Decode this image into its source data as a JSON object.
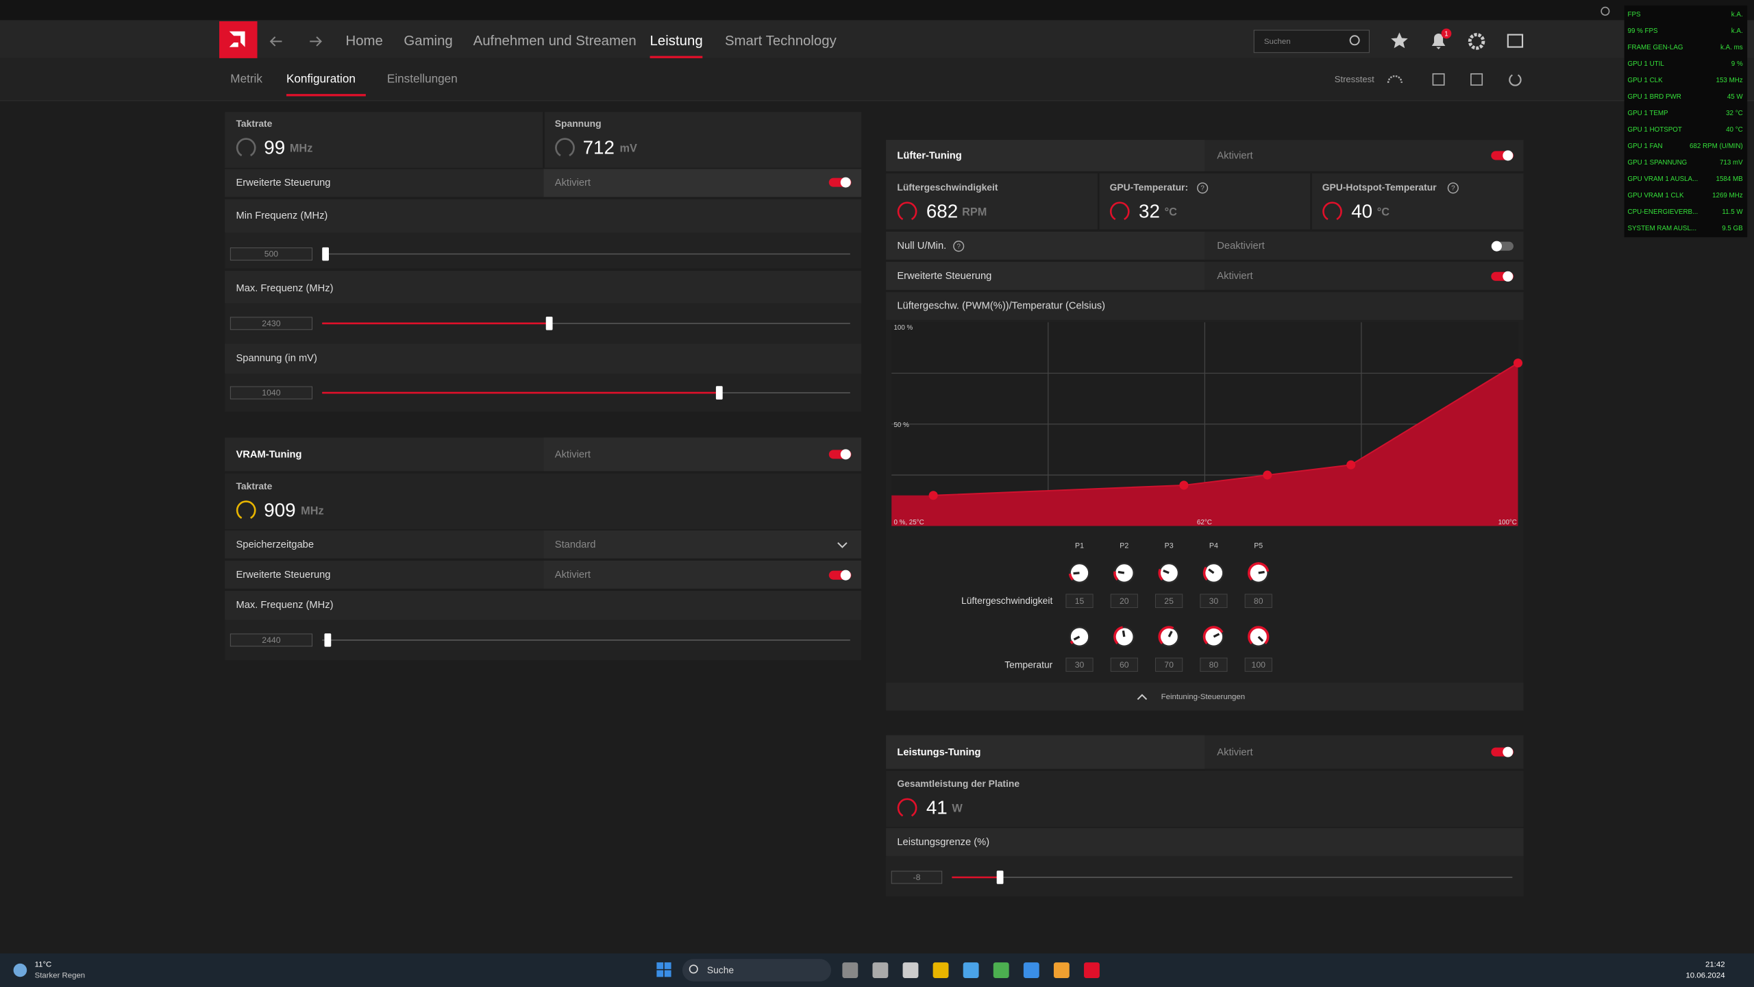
{
  "nav": {
    "items": [
      "Home",
      "Gaming",
      "Aufnehmen und Streamen",
      "Leistung",
      "Smart Technology"
    ],
    "search_placeholder": "Suchen",
    "notification_count": "1"
  },
  "subnav": {
    "items": [
      "Metrik",
      "Konfiguration",
      "Einstellungen"
    ],
    "stresstest": "Stresstest"
  },
  "gpu": {
    "clock_label": "Taktrate",
    "clock_value": 99,
    "clock_unit": "MHz",
    "voltage_label": "Spannung",
    "voltage_value": 712,
    "voltage_unit": "mV",
    "advanced_label": "Erweiterte Steuerung",
    "advanced_state": "Aktiviert",
    "min_freq_label": "Min Frequenz (MHz)",
    "min_freq_value": 500,
    "max_freq_label": "Max. Frequenz (MHz)",
    "max_freq_value": 2430,
    "voltage_mv_label": "Spannung (in mV)",
    "voltage_mv_value": 1040
  },
  "vram": {
    "title": "VRAM-Tuning",
    "state": "Aktiviert",
    "clock_label": "Taktrate",
    "clock_value": 909,
    "clock_unit": "MHz",
    "timing_label": "Speicherzeitgabe",
    "timing_value": "Standard",
    "advanced_label": "Erweiterte Steuerung",
    "advanced_state": "Aktiviert",
    "max_freq_label": "Max. Frequenz (MHz)",
    "max_freq_value": 2440
  },
  "fan": {
    "title": "Lüfter-Tuning",
    "state": "Aktiviert",
    "speed_label": "Lüftergeschwindigkeit",
    "speed_value": 682,
    "speed_unit": "RPM",
    "temp_label": "GPU-Temperatur:",
    "temp_value": 32,
    "temp_unit": "°C",
    "hotspot_label": "GPU-Hotspot-Temperatur",
    "hotspot_value": 40,
    "hotspot_unit": "°C",
    "zero_rpm_label": "Null U/Min.",
    "zero_rpm_state": "Deaktiviert",
    "advanced_label": "Erweiterte Steuerung",
    "advanced_state": "Aktiviert",
    "curve_title": "Lüftergeschw. (PWM(%))/Temperatur (Celsius)",
    "curve": {
      "type": "line",
      "points": [
        "P1",
        "P2",
        "P3",
        "P4",
        "P5"
      ],
      "speed": [
        15,
        20,
        25,
        30,
        80
      ],
      "temperature": [
        30,
        60,
        70,
        80,
        100
      ],
      "xlim": [
        25,
        100
      ],
      "ylim": [
        0,
        100
      ],
      "y_labels": [
        "100 %",
        "50 %"
      ],
      "x_labels": [
        "0 %, 25°C",
        "62°C",
        "100°C"
      ],
      "speed_label": "Lüftergeschwindigkeit",
      "temperature_label": "Temperatur"
    },
    "fine_tuning": "Feintuning-Steuerungen"
  },
  "power": {
    "title": "Leistungs-Tuning",
    "state": "Aktiviert",
    "board_power_label": "Gesamtleistung der Platine",
    "board_power_value": 41,
    "board_power_unit": "W",
    "limit_label": "Leistungsgrenze (%)",
    "limit_value": -8
  },
  "overlay": [
    {
      "label": "FPS",
      "value": "k.A."
    },
    {
      "label": "99 % FPS",
      "value": "k.A."
    },
    {
      "label": "FRAME GEN-LAG",
      "value": "k.A. ms"
    },
    {
      "label": "GPU 1 UTIL",
      "value": "9 %"
    },
    {
      "label": "GPU 1 CLK",
      "value": "153 MHz"
    },
    {
      "label": "GPU 1 BRD PWR",
      "value": "45 W"
    },
    {
      "label": "GPU 1 TEMP",
      "value": "32 °C"
    },
    {
      "label": "GPU 1 HOTSPOT",
      "value": "40 °C"
    },
    {
      "label": "GPU 1 FAN",
      "value": "682 RPM (U/MIN)"
    },
    {
      "label": "GPU 1 SPANNUNG",
      "value": "713 mV"
    },
    {
      "label": "GPU VRAM 1 AUSLA...",
      "value": "1584 MB"
    },
    {
      "label": "GPU VRAM 1 CLK",
      "value": "1269 MHz"
    },
    {
      "label": "CPU-ENERGIEVERB...",
      "value": "11.5 W"
    },
    {
      "label": "SYSTEM RAM AUSL...",
      "value": "9.5 GB"
    }
  ],
  "taskbar": {
    "weather_temp": "11°C",
    "weather_desc": "Starker Regen",
    "search": "Suche",
    "time": "21:42",
    "date": "10.06.2024"
  }
}
